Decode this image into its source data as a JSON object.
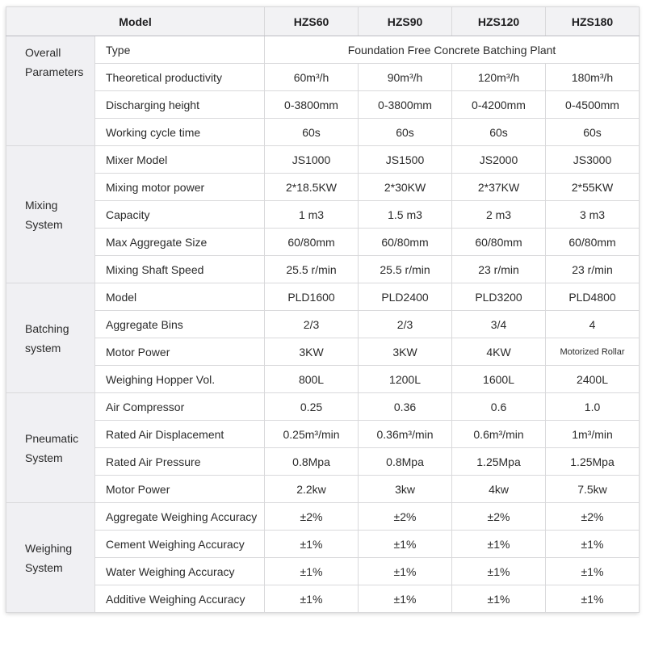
{
  "colors": {
    "header_bg": "#f2f2f4",
    "section_bg": "#f0f0f3",
    "border": "#d9d9db",
    "section_border": "#bcbcc2",
    "text": "#2b2b2b"
  },
  "table": {
    "header": {
      "model_label": "Model",
      "columns": [
        "HZS60",
        "HZS90",
        "HZS120",
        "HZS180"
      ]
    },
    "sections": [
      {
        "label": "Overall Parameters",
        "rows": [
          {
            "param": "Type",
            "span_value": "Foundation Free Concrete Batching Plant"
          },
          {
            "param": "Theoretical productivity",
            "values": [
              "60m³/h",
              "90m³/h",
              "120m³/h",
              "180m³/h"
            ]
          },
          {
            "param": "Discharging height",
            "values": [
              "0-3800mm",
              "0-3800mm",
              "0-4200mm",
              "0-4500mm"
            ]
          },
          {
            "param": "Working cycle time",
            "values": [
              "60s",
              "60s",
              "60s",
              "60s"
            ]
          }
        ]
      },
      {
        "label": "Mixing System",
        "rows": [
          {
            "param": "Mixer Model",
            "values": [
              "JS1000",
              "JS1500",
              "JS2000",
              "JS3000"
            ]
          },
          {
            "param": "Mixing motor power",
            "values": [
              "2*18.5KW",
              "2*30KW",
              "2*37KW",
              "2*55KW"
            ]
          },
          {
            "param": "Capacity",
            "values": [
              "1 m3",
              "1.5 m3",
              "2 m3",
              "3 m3"
            ]
          },
          {
            "param": "Max Aggregate Size",
            "values": [
              "60/80mm",
              "60/80mm",
              "60/80mm",
              "60/80mm"
            ]
          },
          {
            "param": "Mixing Shaft Speed",
            "values": [
              "25.5 r/min",
              "25.5 r/min",
              "23 r/min",
              "23 r/min"
            ]
          }
        ]
      },
      {
        "label": "Batching system",
        "rows": [
          {
            "param": "Model",
            "values": [
              "PLD1600",
              "PLD2400",
              "PLD3200",
              "PLD4800"
            ]
          },
          {
            "param": "Aggregate Bins",
            "values": [
              "2/3",
              "2/3",
              "3/4",
              "4"
            ]
          },
          {
            "param": "Motor Power",
            "values": [
              "3KW",
              "3KW",
              "4KW",
              "Motorized Rollar"
            ]
          },
          {
            "param": "Weighing Hopper Vol.",
            "values": [
              "800L",
              "1200L",
              "1600L",
              "2400L"
            ]
          }
        ]
      },
      {
        "label": "Pneumatic System",
        "rows": [
          {
            "param": "Air Compressor",
            "values": [
              "0.25",
              "0.36",
              "0.6",
              "1.0"
            ]
          },
          {
            "param": "Rated Air Displacement",
            "values": [
              "0.25m³/min",
              "0.36m³/min",
              "0.6m³/min",
              "1m³/min"
            ]
          },
          {
            "param": "Rated Air Pressure",
            "values": [
              "0.8Mpa",
              "0.8Mpa",
              "1.25Mpa",
              "1.25Mpa"
            ]
          },
          {
            "param": "Motor Power",
            "values": [
              "2.2kw",
              "3kw",
              "4kw",
              "7.5kw"
            ]
          }
        ]
      },
      {
        "label": "Weighing System",
        "rows": [
          {
            "param": "Aggregate Weighing Accuracy",
            "values": [
              "±2%",
              "±2%",
              "±2%",
              "±2%"
            ]
          },
          {
            "param": "Cement Weighing Accuracy",
            "values": [
              "±1%",
              "±1%",
              "±1%",
              "±1%"
            ]
          },
          {
            "param": "Water Weighing Accuracy",
            "values": [
              "±1%",
              "±1%",
              "±1%",
              "±1%"
            ]
          },
          {
            "param": "Additive Weighing Accuracy",
            "values": [
              "±1%",
              "±1%",
              "±1%",
              "±1%"
            ]
          }
        ]
      }
    ]
  }
}
